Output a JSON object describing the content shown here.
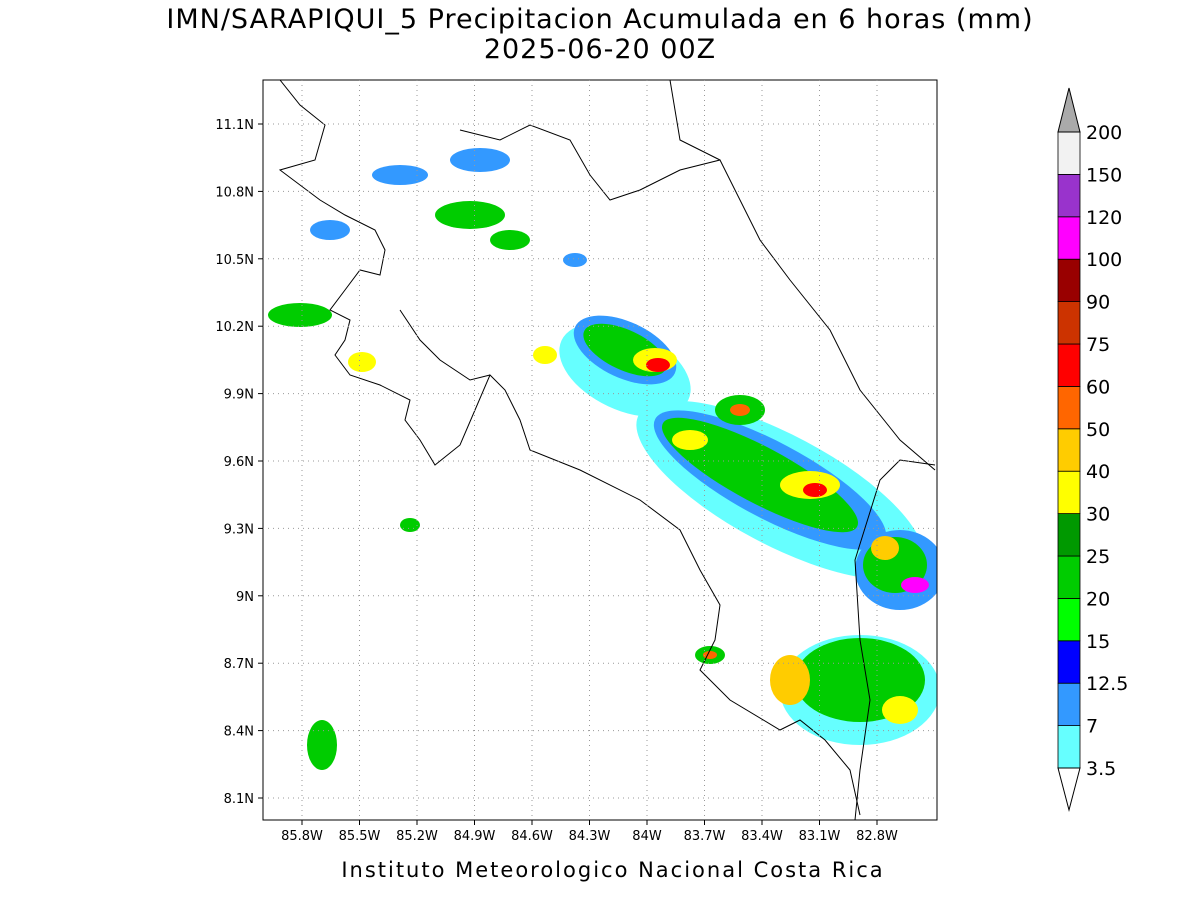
{
  "title": "IMN/SARAPIQUI_5 Precipitacion Acumulada en 6 horas (mm)",
  "subtitle": "2025-06-20 00Z",
  "lat_labels": [
    "11.1N",
    "10.8N",
    "10.5N",
    "10.2N",
    "9.9N",
    "9.6N",
    "9.3N",
    "9N",
    "8.7N",
    "8.4N",
    "8.1N"
  ],
  "lon_labels": [
    "85.8W",
    "85.5W",
    "85.2W",
    "84.9W",
    "84.6W",
    "84.3W",
    "84W",
    "83.7W",
    "83.4W",
    "83.1W",
    "82.8W"
  ],
  "colorbar": {
    "levels": [
      3.5,
      7,
      12.5,
      15,
      20,
      25,
      30,
      40,
      50,
      60,
      75,
      90,
      100,
      120,
      150,
      200
    ],
    "colors": [
      "#66ffff",
      "#3399ff",
      "#0000ff",
      "#00ff00",
      "#00cc00",
      "#009900",
      "#ffff00",
      "#ffcc00",
      "#ff6600",
      "#ff0000",
      "#cc3300",
      "#990000",
      "#ff00ff",
      "#9933cc",
      "#f2f2f2"
    ],
    "under_color": "#ffffff",
    "over_color": "#aaaaaa"
  },
  "footer": "Instituto Meteorologico Nacional Costa Rica"
}
